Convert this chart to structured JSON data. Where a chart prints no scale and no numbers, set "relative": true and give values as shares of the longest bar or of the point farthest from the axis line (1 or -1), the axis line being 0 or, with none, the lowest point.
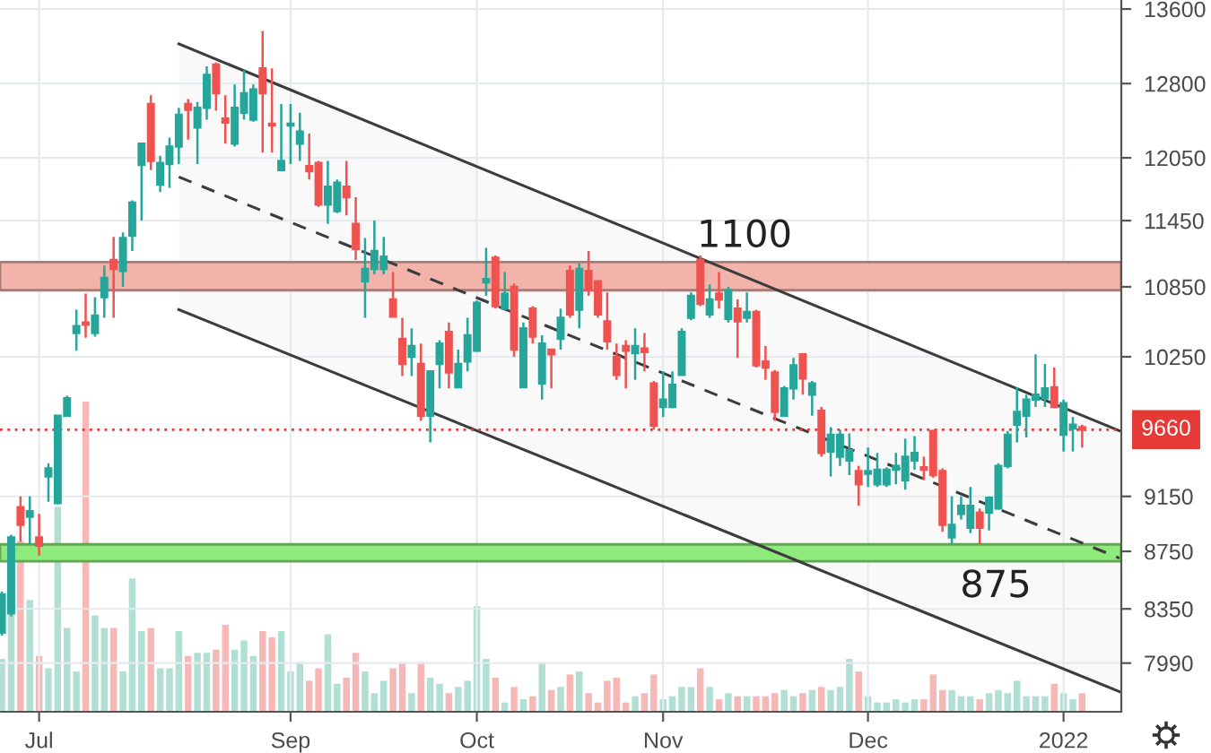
{
  "chart_data": [
    {
      "type": "candlestick",
      "categories": [
        null,
        null,
        null,
        null,
        "Jul",
        null,
        null,
        null,
        null,
        null,
        null,
        null,
        null,
        null,
        null,
        null,
        null,
        null,
        null,
        null,
        null,
        null,
        null,
        null,
        null,
        null,
        null,
        null,
        null,
        null,
        null,
        "Sep",
        null,
        null,
        null,
        null,
        null,
        null,
        null,
        null,
        null,
        null,
        null,
        null,
        null,
        null,
        null,
        null,
        null,
        null,
        null,
        "Oct",
        null,
        null,
        null,
        null,
        null,
        null,
        null,
        null,
        null,
        null,
        null,
        null,
        null,
        null,
        null,
        null,
        null,
        null,
        null,
        "Nov",
        null,
        null,
        null,
        null,
        null,
        null,
        null,
        null,
        null,
        null,
        null,
        null,
        null,
        null,
        null,
        null,
        null,
        null,
        null,
        null,
        null,
        "Dec",
        null,
        null,
        null,
        null,
        null,
        null,
        null,
        null,
        null,
        null,
        null,
        null,
        null,
        null,
        null,
        null,
        null,
        null,
        null,
        null,
        "2022",
        null,
        null,
        null,
        null,
        null,
        null
      ],
      "ohlc": [
        [
          8190,
          8470,
          8170,
          8450
        ],
        [
          8320,
          8870,
          8300,
          8850
        ],
        [
          9070,
          9150,
          8820,
          8940
        ],
        [
          9000,
          9150,
          8800,
          9040
        ],
        [
          8850,
          9020,
          8720,
          8790
        ],
        [
          9300,
          9400,
          9110,
          9360
        ],
        [
          9100,
          9780,
          9090,
          9770
        ],
        [
          9770,
          9930,
          9760,
          9910
        ],
        [
          10450,
          10650,
          10300,
          10510
        ],
        [
          10540,
          10790,
          10410,
          10520
        ],
        [
          10450,
          10760,
          10420,
          10600
        ],
        [
          10760,
          11040,
          10580,
          10930
        ],
        [
          11090,
          11300,
          10580,
          11010
        ],
        [
          10990,
          11340,
          10850,
          11290
        ],
        [
          11310,
          11640,
          11170,
          11620
        ],
        [
          11980,
          12190,
          11450,
          12190
        ],
        [
          12590,
          12680,
          11930,
          12020
        ],
        [
          11790,
          12070,
          11720,
          12000
        ],
        [
          11990,
          12250,
          11760,
          12160
        ],
        [
          12160,
          12550,
          11990,
          12480
        ],
        [
          12590,
          12640,
          12230,
          12530
        ],
        [
          12350,
          12610,
          11990,
          12550
        ],
        [
          12550,
          12980,
          12430,
          12890
        ],
        [
          13000,
          13020,
          12520,
          12700
        ],
        [
          12440,
          12680,
          12190,
          12400
        ],
        [
          12190,
          12790,
          12160,
          12550
        ],
        [
          12500,
          12940,
          12430,
          12700
        ],
        [
          12430,
          12790,
          12410,
          12740
        ],
        [
          12960,
          13360,
          12100,
          12700
        ],
        [
          12390,
          12960,
          12100,
          12370
        ],
        [
          11930,
          12590,
          11930,
          12020
        ],
        [
          12370,
          12590,
          11990,
          12390
        ],
        [
          12190,
          12500,
          12020,
          12310
        ],
        [
          11970,
          12290,
          11840,
          11920
        ],
        [
          12000,
          12020,
          11580,
          11600
        ],
        [
          11600,
          12020,
          11420,
          11770
        ],
        [
          11540,
          11840,
          11520,
          11810
        ],
        [
          11770,
          12020,
          11500,
          11670
        ],
        [
          11420,
          11670,
          11090,
          11190
        ],
        [
          10900,
          11290,
          10580,
          11010
        ],
        [
          11010,
          11450,
          10960,
          11170
        ],
        [
          11010,
          11300,
          10960,
          11120
        ],
        [
          10740,
          10980,
          10580,
          10590
        ],
        [
          10400,
          10580,
          10090,
          10190
        ],
        [
          10250,
          10490,
          10090,
          10340
        ],
        [
          10190,
          10360,
          9730,
          9770
        ],
        [
          9770,
          10130,
          9560,
          10130
        ],
        [
          10190,
          10390,
          9990,
          10360
        ],
        [
          10460,
          10540,
          9990,
          10120
        ],
        [
          10000,
          10310,
          9990,
          10190
        ],
        [
          10210,
          10580,
          10130,
          10430
        ],
        [
          10300,
          10730,
          10290,
          10710
        ],
        [
          10890,
          11200,
          10770,
          10920
        ],
        [
          11110,
          11130,
          10660,
          10680
        ],
        [
          10660,
          10980,
          10650,
          10790
        ],
        [
          10850,
          10880,
          10250,
          10310
        ],
        [
          10000,
          10540,
          9990,
          10490
        ],
        [
          10660,
          10680,
          10360,
          10420
        ],
        [
          10030,
          10430,
          9900,
          10360
        ],
        [
          10310,
          10320,
          9990,
          10270
        ],
        [
          10400,
          10660,
          10310,
          10580
        ],
        [
          10990,
          11040,
          10580,
          10610
        ],
        [
          10650,
          11060,
          10490,
          11010
        ],
        [
          10990,
          11170,
          10770,
          10820
        ],
        [
          10900,
          10910,
          10580,
          10610
        ],
        [
          10550,
          10800,
          10310,
          10380
        ],
        [
          10250,
          10360,
          10060,
          10100
        ],
        [
          10340,
          10390,
          9990,
          10300
        ],
        [
          10280,
          10490,
          10060,
          10340
        ],
        [
          10320,
          10450,
          10130,
          10290
        ],
        [
          10030,
          10050,
          9660,
          9690
        ],
        [
          9840,
          10130,
          9760,
          9900
        ],
        [
          9840,
          10130,
          9830,
          10020
        ],
        [
          10100,
          10490,
          10090,
          10460
        ],
        [
          10580,
          10800,
          10560,
          10770
        ],
        [
          11090,
          11130,
          10680,
          10700
        ],
        [
          10610,
          10870,
          10580,
          10740
        ],
        [
          10790,
          10980,
          10660,
          10740
        ],
        [
          10570,
          10850,
          10540,
          10820
        ],
        [
          10660,
          10740,
          10240,
          10550
        ],
        [
          10580,
          10800,
          10540,
          10630
        ],
        [
          10630,
          10650,
          10160,
          10180
        ],
        [
          10210,
          10340,
          10060,
          10160
        ],
        [
          10120,
          10140,
          9730,
          9800
        ],
        [
          9770,
          10010,
          9760,
          9990
        ],
        [
          9990,
          10240,
          9900,
          10180
        ],
        [
          10270,
          10280,
          9940,
          10070
        ],
        [
          9940,
          10050,
          9770,
          10030
        ],
        [
          9810,
          9840,
          9450,
          9480
        ],
        [
          9490,
          9680,
          9300,
          9620
        ],
        [
          9450,
          9660,
          9380,
          9620
        ],
        [
          9420,
          9630,
          9310,
          9500
        ],
        [
          9340,
          9380,
          9080,
          9240
        ],
        [
          9320,
          9520,
          9220,
          9340
        ],
        [
          9240,
          9480,
          9220,
          9350
        ],
        [
          9240,
          9370,
          9220,
          9350
        ],
        [
          9350,
          9480,
          9240,
          9380
        ],
        [
          9270,
          9590,
          9200,
          9450
        ],
        [
          9420,
          9610,
          9350,
          9480
        ],
        [
          9370,
          9450,
          9270,
          9350
        ],
        [
          9650,
          9660,
          9290,
          9310
        ],
        [
          9340,
          9360,
          8890,
          8940
        ],
        [
          8850,
          9150,
          8800,
          8940
        ],
        [
          9020,
          9150,
          8980,
          9080
        ],
        [
          8920,
          9220,
          8880,
          9080
        ],
        [
          9030,
          9060,
          8800,
          8920
        ],
        [
          9030,
          9150,
          8900,
          9140
        ],
        [
          9060,
          9400,
          9050,
          9380
        ],
        [
          9380,
          9650,
          9360,
          9620
        ],
        [
          9700,
          10000,
          9560,
          9800
        ],
        [
          9770,
          9940,
          9600,
          9900
        ],
        [
          9900,
          10270,
          9840,
          9940
        ],
        [
          9910,
          10190,
          9840,
          9990
        ],
        [
          10000,
          10160,
          9830,
          9840
        ],
        [
          9620,
          9900,
          9490,
          9870
        ],
        [
          9670,
          9760,
          9490,
          9700
        ],
        [
          9680,
          9700,
          9520,
          9660
        ],
        null,
        null,
        null,
        null
      ],
      "colors": [
        "#26a69a",
        "#26a69a",
        "#ef5350",
        "#26a69a",
        "#ef5350",
        "#26a69a",
        "#26a69a",
        "#26a69a",
        "#26a69a",
        "#ef5350",
        "#26a69a",
        "#26a69a",
        "#ef5350",
        "#26a69a",
        "#26a69a",
        "#26a69a",
        "#ef5350",
        "#26a69a",
        "#26a69a",
        "#26a69a",
        "#ef5350",
        "#26a69a",
        "#26a69a",
        "#ef5350",
        "#ef5350",
        "#26a69a",
        "#26a69a",
        "#26a69a",
        "#ef5350",
        "#ef5350",
        "#26a69a",
        "#26a69a",
        "#26a69a",
        "#ef5350",
        "#ef5350",
        "#26a69a",
        "#26a69a",
        "#ef5350",
        "#ef5350",
        "#26a69a",
        "#26a69a",
        "#26a69a",
        "#ef5350",
        "#ef5350",
        "#26a69a",
        "#ef5350",
        "#26a69a",
        "#26a69a",
        "#ef5350",
        "#26a69a",
        "#26a69a",
        "#26a69a",
        "#26a69a",
        "#ef5350",
        "#26a69a",
        "#ef5350",
        "#26a69a",
        "#ef5350",
        "#26a69a",
        "#ef5350",
        "#26a69a",
        "#ef5350",
        "#26a69a",
        "#ef5350",
        "#ef5350",
        "#ef5350",
        "#ef5350",
        "#ef5350",
        "#26a69a",
        "#ef5350",
        "#ef5350",
        "#26a69a",
        "#26a69a",
        "#26a69a",
        "#26a69a",
        "#ef5350",
        "#26a69a",
        "#ef5350",
        "#26a69a",
        "#ef5350",
        "#26a69a",
        "#ef5350",
        "#ef5350",
        "#ef5350",
        "#26a69a",
        "#26a69a",
        "#ef5350",
        "#26a69a",
        "#ef5350",
        "#26a69a",
        "#26a69a",
        "#26a69a",
        "#ef5350",
        "#26a69a",
        "#26a69a",
        "#26a69a",
        "#26a69a",
        "#26a69a",
        "#26a69a",
        "#ef5350",
        "#ef5350",
        "#ef5350",
        "#26a69a",
        "#26a69a",
        "#26a69a",
        "#ef5350",
        "#26a69a",
        "#26a69a",
        "#26a69a",
        "#26a69a",
        "#26a69a",
        "#26a69a",
        "#26a69a",
        "#ef5350",
        "#26a69a",
        "#26a69a",
        "#ef5350",
        null,
        null,
        null,
        null
      ],
      "series": [
        {
          "type": "line",
          "color": "#3c3c3c",
          "line_style": "solid",
          "values": [
            null,
            null,
            null,
            null,
            null,
            null,
            null,
            null,
            null,
            null,
            null,
            null,
            null,
            null,
            null,
            null,
            null,
            null,
            null,
            13219,
            null,
            null,
            null,
            null,
            null,
            null,
            null,
            null,
            null,
            null,
            null,
            null,
            null,
            null,
            null,
            null,
            null,
            null,
            null,
            null,
            null,
            null,
            null,
            null,
            null,
            null,
            null,
            null,
            null,
            null,
            null,
            null,
            null,
            null,
            null,
            null,
            null,
            null,
            null,
            null,
            null,
            null,
            null,
            null,
            null,
            null,
            null,
            null,
            null,
            null,
            null,
            null,
            null,
            null,
            null,
            null,
            null,
            null,
            null,
            null,
            null,
            null,
            null,
            null,
            null,
            null,
            null,
            null,
            null,
            null,
            null,
            null,
            null,
            null,
            null,
            null,
            null,
            null,
            null,
            null,
            null,
            null,
            null,
            null,
            null,
            null,
            null,
            null,
            null,
            null,
            null,
            null,
            null,
            null,
            null,
            null,
            null,
            null,
            null,
            null,
            9652
          ]
        },
        {
          "type": "line",
          "color": "#3c3c3c",
          "line_style": "dashed",
          "values": [
            null,
            null,
            null,
            null,
            null,
            null,
            null,
            null,
            null,
            null,
            null,
            null,
            null,
            null,
            null,
            null,
            null,
            null,
            null,
            11864,
            null,
            null,
            null,
            null,
            null,
            null,
            null,
            null,
            null,
            null,
            null,
            null,
            null,
            null,
            null,
            null,
            null,
            null,
            null,
            null,
            null,
            null,
            null,
            null,
            null,
            null,
            null,
            null,
            null,
            null,
            null,
            null,
            null,
            null,
            null,
            null,
            null,
            null,
            null,
            null,
            null,
            null,
            null,
            null,
            null,
            null,
            null,
            null,
            null,
            null,
            null,
            null,
            null,
            null,
            null,
            null,
            null,
            null,
            null,
            null,
            null,
            null,
            null,
            null,
            null,
            null,
            null,
            null,
            null,
            null,
            null,
            null,
            null,
            null,
            null,
            null,
            null,
            null,
            null,
            null,
            null,
            null,
            null,
            null,
            null,
            null,
            null,
            null,
            null,
            null,
            null,
            null,
            null,
            null,
            null,
            null,
            null,
            null,
            null,
            null,
            8702
          ],
          "lower": [
            null,
            null,
            null,
            null,
            null,
            null,
            null,
            null,
            null,
            null,
            null,
            null,
            null,
            null,
            null,
            null,
            null,
            null,
            null,
            10651,
            null,
            null,
            null,
            null,
            null,
            null,
            null,
            null,
            null,
            null,
            null,
            null,
            null,
            null,
            null,
            null,
            null,
            null,
            null,
            null,
            null,
            null,
            null,
            null,
            null,
            null,
            null,
            null,
            null,
            null,
            null,
            null,
            null,
            null,
            null,
            null,
            null,
            null,
            null,
            null,
            null,
            null,
            null,
            null,
            null,
            null,
            null,
            null,
            null,
            null,
            null,
            null,
            null,
            null,
            null,
            null,
            null,
            null,
            null,
            null,
            null,
            null,
            null,
            null,
            null,
            null,
            null,
            null,
            null,
            null,
            null,
            null,
            null,
            null,
            null,
            null,
            null,
            null,
            null,
            null,
            null,
            null,
            null,
            null,
            null,
            null,
            null,
            null,
            null,
            null,
            null,
            null,
            null,
            null,
            null,
            null,
            null,
            null,
            null,
            null,
            7807
          ],
          "upper": [
            null,
            null,
            null,
            null,
            null,
            null,
            null,
            null,
            null,
            null,
            null,
            null,
            null,
            null,
            null,
            null,
            null,
            null,
            null,
            13219,
            null,
            null,
            null,
            null,
            null,
            null,
            null,
            null,
            null,
            null,
            null,
            null,
            null,
            null,
            null,
            null,
            null,
            null,
            null,
            null,
            null,
            null,
            null,
            null,
            null,
            null,
            null,
            null,
            null,
            null,
            null,
            null,
            null,
            null,
            null,
            null,
            null,
            null,
            null,
            null,
            null,
            null,
            null,
            null,
            null,
            null,
            null,
            null,
            null,
            null,
            null,
            null,
            null,
            null,
            null,
            null,
            null,
            null,
            null,
            null,
            null,
            null,
            null,
            null,
            null,
            null,
            null,
            null,
            null,
            null,
            null,
            null,
            null,
            null,
            null,
            null,
            null,
            null,
            null,
            null,
            null,
            null,
            null,
            null,
            null,
            null,
            null,
            null,
            null,
            null,
            null,
            null,
            null,
            null,
            null,
            null,
            null,
            null,
            null,
            null,
            9652
          ]
        },
        {
          "type": "line",
          "color": "#3c3c3c",
          "line_style": "solid",
          "values": [
            null,
            null,
            null,
            null,
            null,
            null,
            null,
            null,
            null,
            null,
            null,
            null,
            null,
            null,
            null,
            null,
            null,
            null,
            null,
            10651,
            null,
            null,
            null,
            null,
            null,
            null,
            null,
            null,
            null,
            null,
            null,
            null,
            null,
            null,
            null,
            null,
            null,
            null,
            null,
            null,
            null,
            null,
            null,
            null,
            null,
            null,
            null,
            null,
            null,
            null,
            null,
            null,
            null,
            null,
            null,
            null,
            null,
            null,
            null,
            null,
            null,
            null,
            null,
            null,
            null,
            null,
            null,
            null,
            null,
            null,
            null,
            null,
            null,
            null,
            null,
            null,
            null,
            null,
            null,
            null,
            null,
            null,
            null,
            null,
            null,
            null,
            null,
            null,
            null,
            null,
            null,
            null,
            null,
            null,
            null,
            null,
            null,
            null,
            null,
            null,
            null,
            null,
            null,
            null,
            null,
            null,
            null,
            null,
            null,
            null,
            null,
            null,
            null,
            null,
            null,
            null,
            null,
            null,
            null,
            null,
            7807
          ]
        }
      ],
      "log": true,
      "ylim": [
        7680,
        13700
      ],
      "yticks": [
        7990,
        8350,
        8750,
        9150,
        10250,
        10850,
        11450,
        12050,
        12800,
        13600
      ],
      "grid": true,
      "ref_lines": [
        {
          "axis": "y",
          "value": 9660,
          "label": "9660",
          "color": "#e53935",
          "line_style": "dotted"
        }
      ],
      "bands": [
        {
          "axis": "y",
          "from": 10820,
          "to": 11070,
          "label": "1100",
          "color": "#f2b3aa"
        },
        {
          "axis": "y",
          "from": 8680,
          "to": 8800,
          "label": "875",
          "color": "#8eea7a"
        }
      ]
    },
    {
      "type": "bar",
      "relative": true,
      "categories": [
        null,
        null,
        null,
        null,
        null,
        null,
        null,
        null,
        null,
        null,
        null,
        null,
        null,
        null,
        null,
        null,
        null,
        null,
        null,
        null,
        null,
        null,
        null,
        null,
        null,
        null,
        null,
        null,
        null,
        null,
        null,
        null,
        null,
        null,
        null,
        null,
        null,
        null,
        null,
        null,
        null,
        null,
        null,
        null,
        null,
        null,
        null,
        null,
        null,
        null,
        null,
        null,
        null,
        null,
        null,
        null,
        null,
        null,
        null,
        null,
        null,
        null,
        null,
        null,
        null,
        null,
        null,
        null,
        null,
        null,
        null,
        null,
        null,
        null,
        null,
        null,
        null,
        null,
        null,
        null,
        null,
        null,
        null,
        null,
        null,
        null,
        null,
        null,
        null,
        null,
        null,
        null,
        null,
        null,
        null,
        null,
        null,
        null,
        null,
        null,
        null,
        null,
        null,
        null,
        null,
        null,
        null,
        null,
        null,
        null,
        null,
        null,
        null,
        null,
        null,
        null,
        null,
        null,
        null,
        null,
        null
      ],
      "values": [
        0.17,
        0.32,
        0.55,
        0.36,
        0.18,
        0.14,
        0.66,
        0.27,
        0.13,
        1,
        0.31,
        0.27,
        0.27,
        0.13,
        0.43,
        0.26,
        0.27,
        0.14,
        0.14,
        0.26,
        0.18,
        0.19,
        0.19,
        0.2,
        0.28,
        0.2,
        0.23,
        0.18,
        0.26,
        0.24,
        0.26,
        0.13,
        0.16,
        0.1,
        0.14,
        0.25,
        0.09,
        0.11,
        0.19,
        0.13,
        0.06,
        0.1,
        0.14,
        0.16,
        0.06,
        0.16,
        0.11,
        0.09,
        0.06,
        0.08,
        0.1,
        0.34,
        0.17,
        0.11,
        0.03,
        0.08,
        0.04,
        0.05,
        0.16,
        0.07,
        0.08,
        0.12,
        0.13,
        0.06,
        0.03,
        0.1,
        0.11,
        0.03,
        0.05,
        0.06,
        0.12,
        0.04,
        0.05,
        0.08,
        0.08,
        0.14,
        0.08,
        0.04,
        0.06,
        0.05,
        0.05,
        0.05,
        0.05,
        0.06,
        0.07,
        0.05,
        0.06,
        0.07,
        0.08,
        0.07,
        0.08,
        0.17,
        0.13,
        0.05,
        0.03,
        0.03,
        0.04,
        0.03,
        0.04,
        0.04,
        0.12,
        0.07,
        0.07,
        0.05,
        0.05,
        0.04,
        0.06,
        0.07,
        0.06,
        0.1,
        0.05,
        0.05,
        0.05,
        0.09,
        0.06,
        0.04,
        0.06,
        null,
        null,
        null,
        null
      ],
      "colors": [
        "#b2dfd3",
        "#b2dfd3",
        "#f6b8b6",
        "#b2dfd3",
        "#f6b8b6",
        "#b2dfd3",
        "#b2dfd3",
        "#b2dfd3",
        "#b2dfd3",
        "#f6b8b6",
        "#b2dfd3",
        "#b2dfd3",
        "#f6b8b6",
        "#b2dfd3",
        "#b2dfd3",
        "#b2dfd3",
        "#f6b8b6",
        "#b2dfd3",
        "#b2dfd3",
        "#b2dfd3",
        "#f6b8b6",
        "#b2dfd3",
        "#b2dfd3",
        "#f6b8b6",
        "#f6b8b6",
        "#b2dfd3",
        "#b2dfd3",
        "#b2dfd3",
        "#f6b8b6",
        "#f6b8b6",
        "#b2dfd3",
        "#b2dfd3",
        "#b2dfd3",
        "#f6b8b6",
        "#f6b8b6",
        "#b2dfd3",
        "#b2dfd3",
        "#f6b8b6",
        "#f6b8b6",
        "#b2dfd3",
        "#b2dfd3",
        "#b2dfd3",
        "#f6b8b6",
        "#f6b8b6",
        "#b2dfd3",
        "#f6b8b6",
        "#b2dfd3",
        "#b2dfd3",
        "#f6b8b6",
        "#b2dfd3",
        "#b2dfd3",
        "#b2dfd3",
        "#b2dfd3",
        "#f6b8b6",
        "#b2dfd3",
        "#f6b8b6",
        "#b2dfd3",
        "#f6b8b6",
        "#b2dfd3",
        "#f6b8b6",
        "#b2dfd3",
        "#f6b8b6",
        "#b2dfd3",
        "#f6b8b6",
        "#f6b8b6",
        "#f6b8b6",
        "#f6b8b6",
        "#f6b8b6",
        "#b2dfd3",
        "#f6b8b6",
        "#f6b8b6",
        "#b2dfd3",
        "#b2dfd3",
        "#b2dfd3",
        "#b2dfd3",
        "#f6b8b6",
        "#b2dfd3",
        "#f6b8b6",
        "#b2dfd3",
        "#f6b8b6",
        "#b2dfd3",
        "#f6b8b6",
        "#f6b8b6",
        "#f6b8b6",
        "#b2dfd3",
        "#b2dfd3",
        "#f6b8b6",
        "#b2dfd3",
        "#f6b8b6",
        "#b2dfd3",
        "#b2dfd3",
        "#b2dfd3",
        "#f6b8b6",
        "#b2dfd3",
        "#b2dfd3",
        "#b2dfd3",
        "#b2dfd3",
        "#b2dfd3",
        "#b2dfd3",
        "#f6b8b6",
        "#f6b8b6",
        "#f6b8b6",
        "#b2dfd3",
        "#b2dfd3",
        "#b2dfd3",
        "#f6b8b6",
        "#b2dfd3",
        "#b2dfd3",
        "#b2dfd3",
        "#b2dfd3",
        "#b2dfd3",
        "#b2dfd3",
        "#b2dfd3",
        "#f6b8b6",
        "#b2dfd3",
        "#b2dfd3",
        "#f6b8b6",
        null,
        null,
        null,
        null
      ]
    }
  ]
}
